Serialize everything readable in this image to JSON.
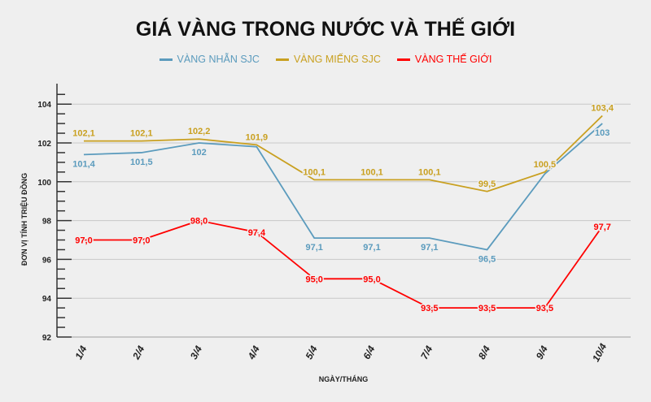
{
  "chart_data": {
    "type": "line",
    "title": "GIÁ VÀNG TRONG NƯỚC VÀ THẾ GIỚI",
    "xlabel": "NGÀY/THÁNG",
    "ylabel": "ĐƠN VỊ TÍNH TRIỆU ĐỒNG",
    "categories": [
      "1/4",
      "2/4",
      "3/4",
      "4/4",
      "5/4",
      "6/4",
      "7/4",
      "8/4",
      "9/4",
      "10/4"
    ],
    "ylim": [
      92,
      105
    ],
    "yticks": [
      "92",
      "94",
      "96",
      "98",
      "100",
      "102",
      "104"
    ],
    "grid": true,
    "legend_position": "top",
    "series": [
      {
        "name": "VÀNG NHẪN SJC",
        "color": "#5b9bbd",
        "values": [
          101.4,
          101.5,
          102,
          101.8,
          97.1,
          97.1,
          97.1,
          96.5,
          100.4,
          103
        ],
        "labels": [
          "101,4",
          "101,5",
          "102",
          "",
          "97,1",
          "97,1",
          "97,1",
          "96,5",
          "",
          "103"
        ]
      },
      {
        "name": "VÀNG MIẾNG SJC",
        "color": "#c9a020",
        "values": [
          102.1,
          102.1,
          102.2,
          101.9,
          100.1,
          100.1,
          100.1,
          99.5,
          100.5,
          103.4
        ],
        "labels": [
          "102,1",
          "102,1",
          "102,2",
          "101,9",
          "100,1",
          "100,1",
          "100,1",
          "99,5",
          "100,5",
          "103,4"
        ]
      },
      {
        "name": "VÀNG THẾ GIỚI",
        "color": "#ff0000",
        "values": [
          97.0,
          97.0,
          98.0,
          97.4,
          95.0,
          95.0,
          93.5,
          93.5,
          93.5,
          97.7
        ],
        "labels": [
          "97,0",
          "97,0",
          "98,0",
          "97,4",
          "95,0",
          "95,0",
          "93,5",
          "93,5",
          "93,5",
          "97,7"
        ]
      }
    ]
  }
}
